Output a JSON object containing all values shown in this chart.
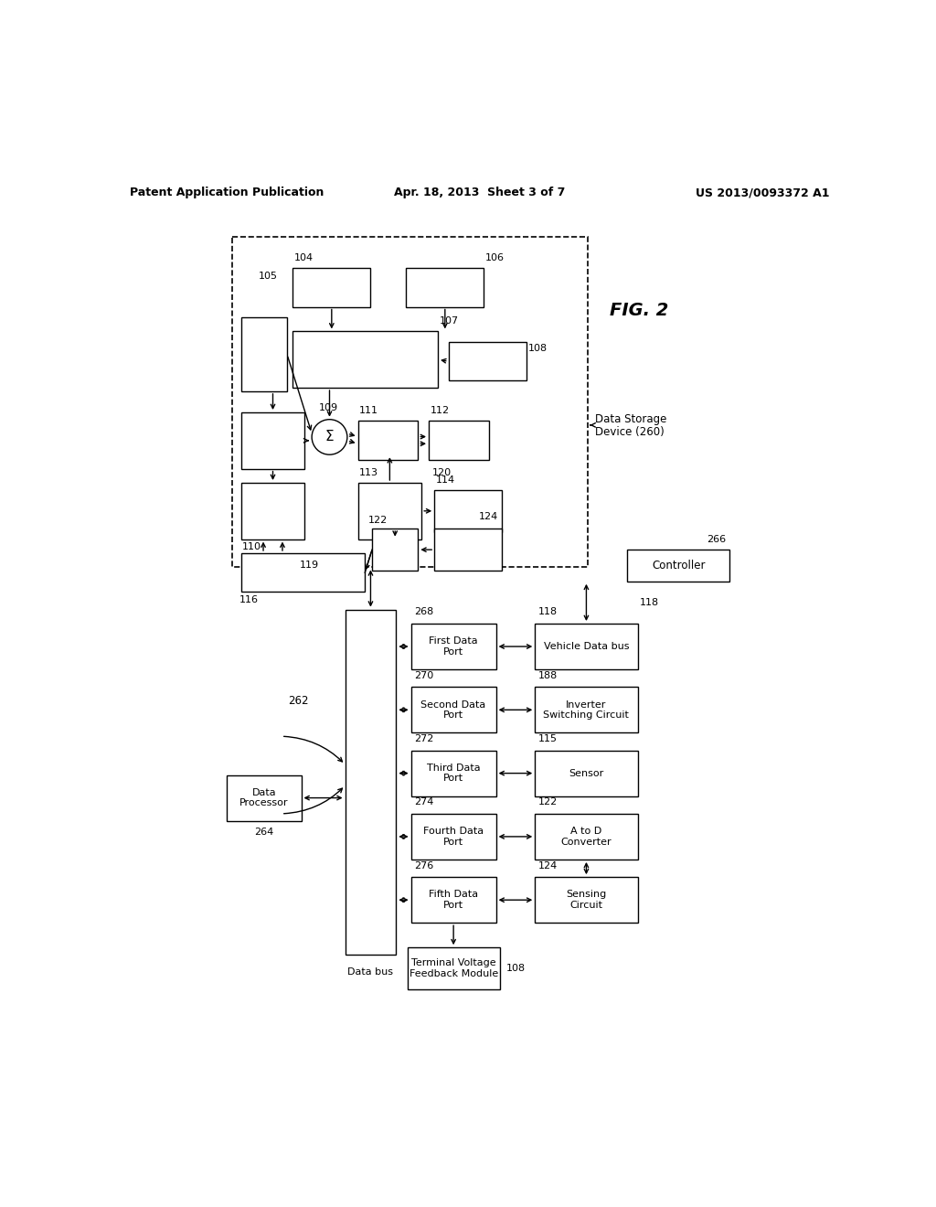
{
  "title_left": "Patent Application Publication",
  "title_center": "Apr. 18, 2013  Sheet 3 of 7",
  "title_right": "US 2013/0093372 A1",
  "fig_label": "FIG. 2",
  "background_color": "#ffffff"
}
